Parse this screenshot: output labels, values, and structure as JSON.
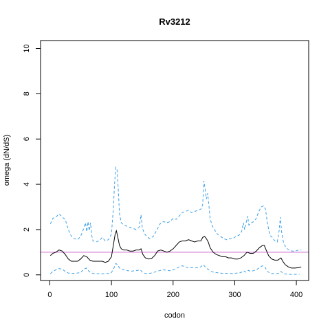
{
  "chart_data": {
    "type": "line",
    "title": "Rv3212",
    "xlabel": "codon",
    "ylabel": "omega (dN/dS)",
    "xlim": [
      -15,
      420
    ],
    "ylim": [
      -0.25,
      10.35
    ],
    "x_ticks": [
      0,
      100,
      200,
      300,
      400
    ],
    "y_ticks": [
      0,
      2,
      4,
      6,
      8,
      10
    ],
    "reference_line": {
      "y": 1.0,
      "color": "#cc66cc"
    },
    "grid": false,
    "legend": "none",
    "series": [
      {
        "role": "upper-bound",
        "color": "#3fa0e6",
        "style": "dashed",
        "points": [
          [
            1,
            2.25
          ],
          [
            5,
            2.5
          ],
          [
            10,
            2.55
          ],
          [
            15,
            2.7
          ],
          [
            20,
            2.55
          ],
          [
            25,
            2.45
          ],
          [
            30,
            2.0
          ],
          [
            35,
            1.7
          ],
          [
            40,
            1.6
          ],
          [
            45,
            1.55
          ],
          [
            50,
            1.7
          ],
          [
            55,
            2.05
          ],
          [
            58,
            2.3
          ],
          [
            60,
            1.9
          ],
          [
            62,
            2.35
          ],
          [
            64,
            1.95
          ],
          [
            66,
            2.3
          ],
          [
            68,
            1.75
          ],
          [
            70,
            1.5
          ],
          [
            75,
            1.45
          ],
          [
            80,
            1.5
          ],
          [
            85,
            1.65
          ],
          [
            90,
            1.5
          ],
          [
            95,
            1.55
          ],
          [
            100,
            1.8
          ],
          [
            103,
            2.9
          ],
          [
            105,
            4.0
          ],
          [
            107,
            4.75
          ],
          [
            109,
            4.65
          ],
          [
            111,
            3.8
          ],
          [
            113,
            2.7
          ],
          [
            116,
            2.3
          ],
          [
            120,
            2.2
          ],
          [
            125,
            2.15
          ],
          [
            130,
            2.1
          ],
          [
            135,
            2.05
          ],
          [
            140,
            2.0
          ],
          [
            145,
            2.1
          ],
          [
            148,
            2.65
          ],
          [
            150,
            2.1
          ],
          [
            153,
            1.85
          ],
          [
            157,
            1.7
          ],
          [
            162,
            1.6
          ],
          [
            168,
            1.7
          ],
          [
            172,
            1.9
          ],
          [
            176,
            2.1
          ],
          [
            180,
            2.3
          ],
          [
            185,
            2.35
          ],
          [
            190,
            2.3
          ],
          [
            195,
            2.35
          ],
          [
            200,
            2.5
          ],
          [
            205,
            2.45
          ],
          [
            210,
            2.6
          ],
          [
            215,
            2.75
          ],
          [
            220,
            2.8
          ],
          [
            225,
            2.85
          ],
          [
            230,
            2.75
          ],
          [
            235,
            2.8
          ],
          [
            240,
            2.85
          ],
          [
            245,
            2.9
          ],
          [
            248,
            3.1
          ],
          [
            250,
            4.15
          ],
          [
            252,
            3.8
          ],
          [
            254,
            3.35
          ],
          [
            256,
            3.6
          ],
          [
            258,
            3.1
          ],
          [
            260,
            2.5
          ],
          [
            263,
            2.2
          ],
          [
            267,
            2.0
          ],
          [
            272,
            1.8
          ],
          [
            277,
            1.7
          ],
          [
            282,
            1.6
          ],
          [
            287,
            1.55
          ],
          [
            292,
            1.6
          ],
          [
            297,
            1.6
          ],
          [
            302,
            1.7
          ],
          [
            307,
            1.75
          ],
          [
            311,
            1.9
          ],
          [
            314,
            2.3
          ],
          [
            316,
            2.0
          ],
          [
            319,
            2.35
          ],
          [
            321,
            2.6
          ],
          [
            323,
            2.2
          ],
          [
            327,
            2.3
          ],
          [
            331,
            2.35
          ],
          [
            335,
            2.5
          ],
          [
            339,
            2.8
          ],
          [
            343,
            3.0
          ],
          [
            347,
            3.05
          ],
          [
            350,
            2.9
          ],
          [
            353,
            2.3
          ],
          [
            357,
            1.75
          ],
          [
            361,
            1.65
          ],
          [
            365,
            1.5
          ],
          [
            369,
            1.45
          ],
          [
            372,
            1.95
          ],
          [
            374,
            2.55
          ],
          [
            376,
            1.9
          ],
          [
            379,
            1.45
          ],
          [
            383,
            1.2
          ],
          [
            388,
            1.1
          ],
          [
            393,
            1.05
          ],
          [
            398,
            1.05
          ],
          [
            404,
            1.1
          ],
          [
            408,
            1.1
          ]
        ]
      },
      {
        "role": "estimate",
        "color": "#000000",
        "style": "solid",
        "points": [
          [
            1,
            0.85
          ],
          [
            5,
            0.95
          ],
          [
            10,
            1.0
          ],
          [
            15,
            1.1
          ],
          [
            20,
            1.05
          ],
          [
            25,
            0.9
          ],
          [
            30,
            0.7
          ],
          [
            35,
            0.6
          ],
          [
            40,
            0.6
          ],
          [
            45,
            0.6
          ],
          [
            50,
            0.7
          ],
          [
            55,
            0.85
          ],
          [
            60,
            0.8
          ],
          [
            65,
            0.65
          ],
          [
            70,
            0.6
          ],
          [
            75,
            0.6
          ],
          [
            80,
            0.6
          ],
          [
            85,
            0.6
          ],
          [
            90,
            0.55
          ],
          [
            95,
            0.6
          ],
          [
            100,
            0.8
          ],
          [
            103,
            1.3
          ],
          [
            106,
            1.8
          ],
          [
            108,
            1.95
          ],
          [
            110,
            1.7
          ],
          [
            113,
            1.3
          ],
          [
            116,
            1.15
          ],
          [
            120,
            1.1
          ],
          [
            125,
            1.1
          ],
          [
            130,
            1.05
          ],
          [
            135,
            1.05
          ],
          [
            140,
            1.1
          ],
          [
            145,
            1.1
          ],
          [
            148,
            1.15
          ],
          [
            151,
            0.9
          ],
          [
            155,
            0.75
          ],
          [
            160,
            0.7
          ],
          [
            165,
            0.72
          ],
          [
            170,
            0.85
          ],
          [
            175,
            1.05
          ],
          [
            180,
            1.1
          ],
          [
            185,
            1.05
          ],
          [
            190,
            1.0
          ],
          [
            195,
            1.05
          ],
          [
            200,
            1.15
          ],
          [
            205,
            1.3
          ],
          [
            210,
            1.45
          ],
          [
            215,
            1.5
          ],
          [
            220,
            1.5
          ],
          [
            225,
            1.55
          ],
          [
            230,
            1.5
          ],
          [
            235,
            1.45
          ],
          [
            240,
            1.5
          ],
          [
            245,
            1.5
          ],
          [
            248,
            1.65
          ],
          [
            251,
            1.7
          ],
          [
            254,
            1.6
          ],
          [
            257,
            1.45
          ],
          [
            260,
            1.2
          ],
          [
            265,
            1.0
          ],
          [
            270,
            0.9
          ],
          [
            275,
            0.85
          ],
          [
            280,
            0.8
          ],
          [
            285,
            0.8
          ],
          [
            290,
            0.75
          ],
          [
            295,
            0.75
          ],
          [
            300,
            0.7
          ],
          [
            305,
            0.7
          ],
          [
            310,
            0.75
          ],
          [
            315,
            0.85
          ],
          [
            320,
            1.0
          ],
          [
            325,
            0.95
          ],
          [
            330,
            0.95
          ],
          [
            335,
            1.05
          ],
          [
            340,
            1.2
          ],
          [
            345,
            1.3
          ],
          [
            348,
            1.3
          ],
          [
            351,
            1.1
          ],
          [
            355,
            0.85
          ],
          [
            360,
            0.7
          ],
          [
            365,
            0.65
          ],
          [
            370,
            0.65
          ],
          [
            375,
            0.75
          ],
          [
            378,
            0.6
          ],
          [
            382,
            0.45
          ],
          [
            387,
            0.35
          ],
          [
            392,
            0.3
          ],
          [
            398,
            0.3
          ],
          [
            404,
            0.32
          ],
          [
            408,
            0.35
          ]
        ]
      },
      {
        "role": "lower-bound",
        "color": "#3fa0e6",
        "style": "dashed",
        "points": [
          [
            1,
            0.05
          ],
          [
            5,
            0.15
          ],
          [
            10,
            0.22
          ],
          [
            15,
            0.28
          ],
          [
            20,
            0.25
          ],
          [
            25,
            0.15
          ],
          [
            30,
            0.08
          ],
          [
            35,
            0.07
          ],
          [
            40,
            0.07
          ],
          [
            45,
            0.08
          ],
          [
            50,
            0.1
          ],
          [
            55,
            0.25
          ],
          [
            59,
            0.3
          ],
          [
            62,
            0.2
          ],
          [
            66,
            0.1
          ],
          [
            70,
            0.06
          ],
          [
            75,
            0.05
          ],
          [
            80,
            0.05
          ],
          [
            85,
            0.05
          ],
          [
            90,
            0.05
          ],
          [
            95,
            0.06
          ],
          [
            100,
            0.1
          ],
          [
            104,
            0.3
          ],
          [
            107,
            0.5
          ],
          [
            110,
            0.45
          ],
          [
            113,
            0.3
          ],
          [
            117,
            0.25
          ],
          [
            122,
            0.2
          ],
          [
            127,
            0.18
          ],
          [
            132,
            0.16
          ],
          [
            137,
            0.18
          ],
          [
            142,
            0.2
          ],
          [
            147,
            0.22
          ],
          [
            150,
            0.12
          ],
          [
            155,
            0.06
          ],
          [
            160,
            0.06
          ],
          [
            165,
            0.08
          ],
          [
            170,
            0.12
          ],
          [
            175,
            0.16
          ],
          [
            180,
            0.2
          ],
          [
            185,
            0.22
          ],
          [
            190,
            0.2
          ],
          [
            195,
            0.18
          ],
          [
            200,
            0.22
          ],
          [
            205,
            0.28
          ],
          [
            210,
            0.35
          ],
          [
            215,
            0.4
          ],
          [
            220,
            0.35
          ],
          [
            225,
            0.3
          ],
          [
            230,
            0.32
          ],
          [
            235,
            0.3
          ],
          [
            240,
            0.32
          ],
          [
            245,
            0.35
          ],
          [
            249,
            0.45
          ],
          [
            252,
            0.35
          ],
          [
            256,
            0.25
          ],
          [
            260,
            0.18
          ],
          [
            265,
            0.12
          ],
          [
            270,
            0.1
          ],
          [
            275,
            0.08
          ],
          [
            280,
            0.07
          ],
          [
            285,
            0.07
          ],
          [
            290,
            0.06
          ],
          [
            295,
            0.06
          ],
          [
            300,
            0.07
          ],
          [
            305,
            0.08
          ],
          [
            310,
            0.1
          ],
          [
            314,
            0.18
          ],
          [
            318,
            0.12
          ],
          [
            322,
            0.2
          ],
          [
            326,
            0.15
          ],
          [
            330,
            0.18
          ],
          [
            335,
            0.22
          ],
          [
            340,
            0.32
          ],
          [
            345,
            0.4
          ],
          [
            349,
            0.35
          ],
          [
            353,
            0.15
          ],
          [
            358,
            0.07
          ],
          [
            363,
            0.05
          ],
          [
            368,
            0.05
          ],
          [
            372,
            0.08
          ],
          [
            375,
            0.15
          ],
          [
            378,
            0.08
          ],
          [
            382,
            0.04
          ],
          [
            388,
            0.02
          ],
          [
            394,
            0.02
          ],
          [
            400,
            0.02
          ],
          [
            405,
            0.03
          ]
        ]
      }
    ]
  }
}
